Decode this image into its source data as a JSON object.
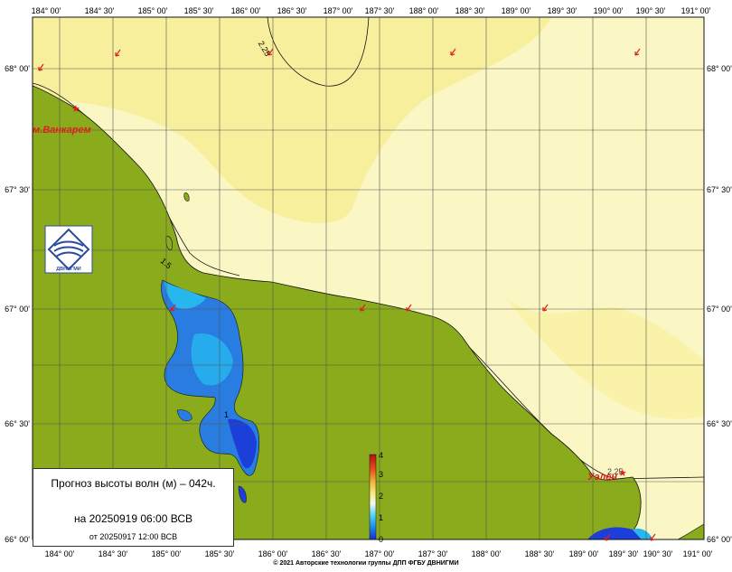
{
  "map": {
    "lon_labels": [
      "184° 00'",
      "184° 30'",
      "185° 00'",
      "185° 30'",
      "186° 00'",
      "186° 30'",
      "187° 00'",
      "187° 30'",
      "188° 00'",
      "188° 30'",
      "189° 00'",
      "189° 30'",
      "190° 00'",
      "190° 30'",
      "191° 00'"
    ],
    "lat_labels": [
      "68° 00'",
      "67° 30'",
      "67° 00'",
      "66° 30'",
      "66° 00'"
    ],
    "places": [
      {
        "name": "м.Ванкарем"
      },
      {
        "name": "Уэлен"
      }
    ],
    "contour_labels": [
      "2.25",
      "1.5",
      "1",
      "2.25"
    ],
    "colors": {
      "land": "#8aab1c",
      "sea_light": "#fbf7c4",
      "sea_mid": "#f8ef9d",
      "water_blue": "#2a7de0",
      "water_light": "#26b7ef",
      "water_deep": "#1b3fd8",
      "marker": "#e11d1d"
    }
  },
  "legend": {
    "ticks": [
      "4",
      "3",
      "2",
      "1",
      "0"
    ]
  },
  "info": {
    "title": "Прогноз высоты волн (м) – 042ч.",
    "forecast": "на 20250919 06:00 ВСВ",
    "base": "от 20250917 12:00 ВСВ"
  },
  "logo": {
    "text": "ДВНИГМИ"
  },
  "copyright": "© 2021 Авторские технологии группы ДПП ФГБУ ДВНИГМИ"
}
